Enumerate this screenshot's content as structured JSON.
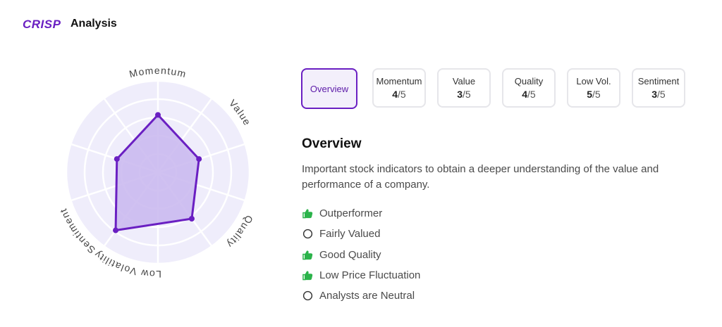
{
  "header": {
    "logo_text": "CRISP",
    "title": "Analysis"
  },
  "radar": {
    "axes": [
      "Momentum",
      "Value",
      "Quality",
      "Low Volatility",
      "Sentiment"
    ],
    "scores": [
      4,
      3,
      4,
      5,
      3
    ],
    "max_score": 5,
    "rings": 5
  },
  "tabs": [
    {
      "label": "Overview",
      "active": true
    },
    {
      "label": "Momentum",
      "score": "4",
      "of": "/5",
      "active": false
    },
    {
      "label": "Value",
      "score": "3",
      "of": "/5",
      "active": false
    },
    {
      "label": "Quality",
      "score": "4",
      "of": "/5",
      "active": false
    },
    {
      "label": "Low Vol.",
      "score": "5",
      "of": "/5",
      "active": false
    },
    {
      "label": "Sentiment",
      "score": "3",
      "of": "/5",
      "active": false
    }
  ],
  "overview": {
    "title": "Overview",
    "description": "Important stock indicators to obtain a deeper understanding of the value and performance of a company.",
    "indicators": [
      {
        "text": "Outperformer",
        "icon": "thumbs-up-icon"
      },
      {
        "text": "Fairly Valued",
        "icon": "circle-icon"
      },
      {
        "text": "Good Quality",
        "icon": "thumbs-up-icon"
      },
      {
        "text": "Low Price Fluctuation",
        "icon": "thumbs-up-icon"
      },
      {
        "text": "Analysts are Neutral",
        "icon": "circle-icon"
      }
    ]
  },
  "colors": {
    "brand": "#6a1fc2",
    "radar_bg": "#efedfb",
    "radar_fill": "#c8b6ee",
    "positive": "#2bb34a",
    "neutral": "#333333"
  }
}
